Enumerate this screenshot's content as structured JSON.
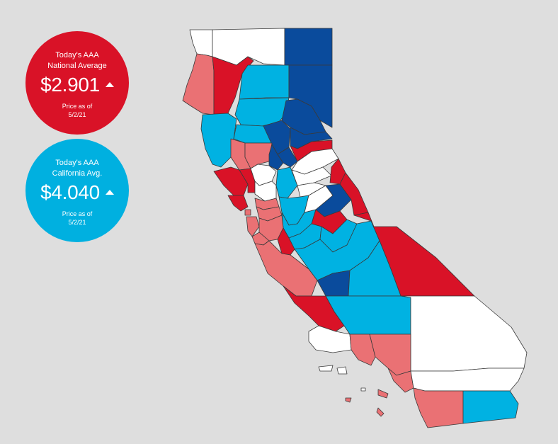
{
  "national": {
    "title_line1": "Today's AAA",
    "title_line2": "National Average",
    "price": "$2.901",
    "trend": "up",
    "asof_line1": "Price as of",
    "asof_line2": "5/2/21",
    "color": "#d91227"
  },
  "california": {
    "title_line1": "Today's AAA",
    "title_line2": "California Avg.",
    "price": "$4.040",
    "trend": "up",
    "asof_line1": "Price as of",
    "asof_line2": "5/2/21",
    "color": "#00b0e0"
  },
  "map": {
    "legend_colors": {
      "very_high": "#d91227",
      "high": "#ea7174",
      "average": "#ffffff",
      "low": "#00b2e2",
      "very_low": "#0a4b9c"
    }
  }
}
